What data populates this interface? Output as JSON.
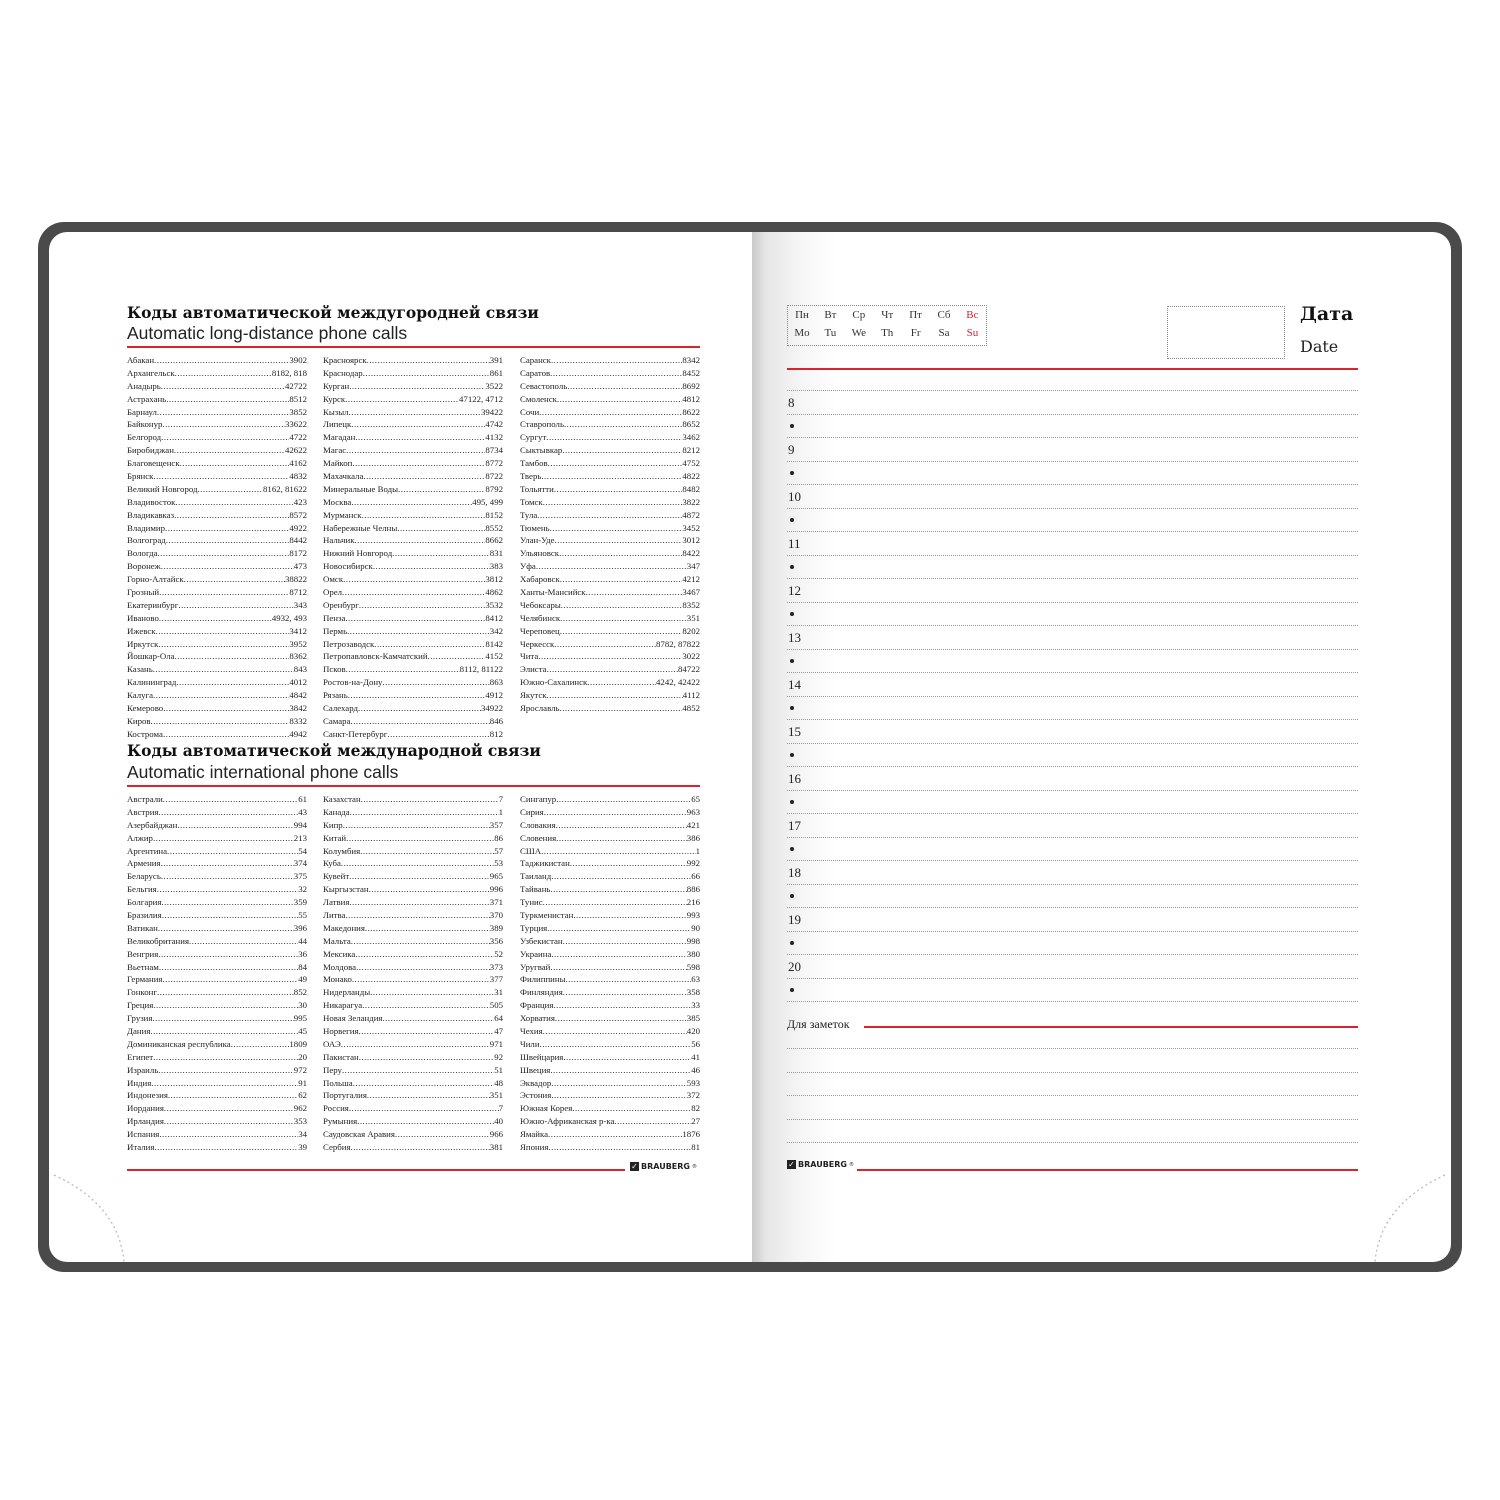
{
  "left_page": {
    "domestic": {
      "title": "Коды автоматической междугородней связи",
      "subtitle": "Automatic long-distance phone calls",
      "columns": [
        [
          [
            "Абакан",
            "3902"
          ],
          [
            "Архангельск",
            "8182, 818"
          ],
          [
            "Анадырь",
            "42722"
          ],
          [
            "Астрахань",
            "8512"
          ],
          [
            "Барнаул",
            "3852"
          ],
          [
            "Байконур",
            "33622"
          ],
          [
            "Белгород",
            "4722"
          ],
          [
            "Биробиджан",
            "42622"
          ],
          [
            "Благовещенск",
            "4162"
          ],
          [
            "Брянск",
            "4832"
          ],
          [
            "Великий Новгород",
            "8162, 81622"
          ],
          [
            "Владивосток",
            "423"
          ],
          [
            "Владикавказ",
            "8572"
          ],
          [
            "Владимир",
            "4922"
          ],
          [
            "Волгоград",
            "8442"
          ],
          [
            "Вологда",
            "8172"
          ],
          [
            "Воронеж",
            "473"
          ],
          [
            "Горно-Алтайск",
            "38822"
          ],
          [
            "Грозный",
            "8712"
          ],
          [
            "Екатеринбург",
            "343"
          ],
          [
            "Иваново",
            "4932, 493"
          ],
          [
            "Ижевск",
            "3412"
          ],
          [
            "Иркутск",
            "3952"
          ],
          [
            "Йошкар-Ола",
            "8362"
          ],
          [
            "Казань",
            "843"
          ],
          [
            "Калининград",
            "4012"
          ],
          [
            "Калуга",
            "4842"
          ],
          [
            "Кемерово",
            "3842"
          ],
          [
            "Киров",
            "8332"
          ],
          [
            "Кострома",
            "4942"
          ]
        ],
        [
          [
            "Красноярск",
            "391"
          ],
          [
            "Краснодар",
            "861"
          ],
          [
            "Курган",
            "3522"
          ],
          [
            "Курск",
            "47122, 4712"
          ],
          [
            "Кызыл",
            "39422"
          ],
          [
            "Липецк",
            "4742"
          ],
          [
            "Магадан",
            "4132"
          ],
          [
            "Магас",
            "8734"
          ],
          [
            "Майкоп",
            "8772"
          ],
          [
            "Махачкала",
            "8722"
          ],
          [
            "Минеральные Воды",
            "8792"
          ],
          [
            "Москва",
            "495, 499"
          ],
          [
            "Мурманск",
            "8152"
          ],
          [
            "Набережные Челны",
            "8552"
          ],
          [
            "Нальчик",
            "8662"
          ],
          [
            "Нижний Новгород",
            "831"
          ],
          [
            "Новосибирск",
            "383"
          ],
          [
            "Омск",
            "3812"
          ],
          [
            "Орел",
            "4862"
          ],
          [
            "Оренбург",
            "3532"
          ],
          [
            "Пенза",
            "8412"
          ],
          [
            "Пермь",
            "342"
          ],
          [
            "Петрозаводск",
            "8142"
          ],
          [
            "Петропавловск-Камчатский",
            "4152"
          ],
          [
            "Псков",
            "8112, 81122"
          ],
          [
            "Ростов-на-Дону",
            "863"
          ],
          [
            "Рязань",
            "4912"
          ],
          [
            "Салехард",
            "34922"
          ],
          [
            "Самара",
            "846"
          ],
          [
            "Санкт-Петербург",
            "812"
          ]
        ],
        [
          [
            "Саранск",
            "8342"
          ],
          [
            "Саратов",
            "8452"
          ],
          [
            "Севастополь",
            "8692"
          ],
          [
            "Смоленск",
            "4812"
          ],
          [
            "Сочи",
            "8622"
          ],
          [
            "Ставрополь",
            "8652"
          ],
          [
            "Сургут",
            "3462"
          ],
          [
            "Сыктывкар",
            "8212"
          ],
          [
            "Тамбов",
            "4752"
          ],
          [
            "Тверь",
            "4822"
          ],
          [
            "Тольятти",
            "8482"
          ],
          [
            "Томск",
            "3822"
          ],
          [
            "Тула",
            "4872"
          ],
          [
            "Тюмень",
            "3452"
          ],
          [
            "Улан-Уде",
            "3012"
          ],
          [
            "Ульяновск",
            "8422"
          ],
          [
            "Уфа",
            "347"
          ],
          [
            "Хабаровск",
            "4212"
          ],
          [
            "Ханты-Мансийск",
            "3467"
          ],
          [
            "Чебоксары",
            "8352"
          ],
          [
            "Челябинск",
            "351"
          ],
          [
            "Череповец",
            "8202"
          ],
          [
            "Черкесск",
            "8782, 87822"
          ],
          [
            "Чита",
            "3022"
          ],
          [
            "Элиста",
            "84722"
          ],
          [
            "Южно-Сахалинск",
            "4242, 42422"
          ],
          [
            "Якутск",
            "4112"
          ],
          [
            "Ярославль",
            "4852"
          ]
        ]
      ]
    },
    "international": {
      "title": "Коды автоматической международной связи",
      "subtitle": "Automatic international phone calls",
      "columns": [
        [
          [
            "Австрали",
            "61"
          ],
          [
            "Австрия",
            "43"
          ],
          [
            "Азербайджан",
            "994"
          ],
          [
            "Алжир",
            "213"
          ],
          [
            "Аргентина",
            "54"
          ],
          [
            "Армения",
            "374"
          ],
          [
            "Беларусь",
            "375"
          ],
          [
            "Бельгия",
            "32"
          ],
          [
            "Болгария",
            "359"
          ],
          [
            "Бразилия",
            "55"
          ],
          [
            "Ватикан",
            "396"
          ],
          [
            "Великобритания",
            "44"
          ],
          [
            "Венгрия",
            "36"
          ],
          [
            "Вьетнам",
            "84"
          ],
          [
            "Германия",
            "49"
          ],
          [
            "Гонконг",
            "852"
          ],
          [
            "Греция",
            "30"
          ],
          [
            "Грузия",
            "995"
          ],
          [
            "Дания",
            "45"
          ],
          [
            "Доминиканская республика",
            "1809"
          ],
          [
            "Египет",
            "20"
          ],
          [
            "Израиль",
            "972"
          ],
          [
            "Индия",
            "91"
          ],
          [
            "Индонезия",
            "62"
          ],
          [
            "Иордания",
            "962"
          ],
          [
            "Ирландия",
            "353"
          ],
          [
            "Испания",
            "34"
          ],
          [
            "Италия",
            "39"
          ]
        ],
        [
          [
            "Казахстан",
            "7"
          ],
          [
            "Канада",
            "1"
          ],
          [
            "Кипр",
            "357"
          ],
          [
            "Китай",
            "86"
          ],
          [
            "Колумбия",
            "57"
          ],
          [
            "Куба",
            "53"
          ],
          [
            "Кувейт",
            "965"
          ],
          [
            "Кыргызстан",
            "996"
          ],
          [
            "Латвия",
            "371"
          ],
          [
            "Литва",
            "370"
          ],
          [
            "Македония",
            "389"
          ],
          [
            "Мальта",
            "356"
          ],
          [
            "Мексика",
            "52"
          ],
          [
            "Молдова",
            "373"
          ],
          [
            "Монако",
            "377"
          ],
          [
            "Нидерланды",
            "31"
          ],
          [
            "Никарагуа",
            "505"
          ],
          [
            "Новая Зеландия",
            "64"
          ],
          [
            "Норвегия",
            "47"
          ],
          [
            "ОАЭ",
            "971"
          ],
          [
            "Пакистан",
            "92"
          ],
          [
            "Перу",
            "51"
          ],
          [
            "Польша",
            "48"
          ],
          [
            "Португалия",
            "351"
          ],
          [
            "Россия",
            "7"
          ],
          [
            "Румыния",
            "40"
          ],
          [
            "Саудовская Аравия",
            "966"
          ],
          [
            "Сербия",
            "381"
          ]
        ],
        [
          [
            "Сингапур",
            "65"
          ],
          [
            "Сирия",
            "963"
          ],
          [
            "Словакия",
            "421"
          ],
          [
            "Словения",
            "386"
          ],
          [
            "США",
            "1"
          ],
          [
            "Таджикистан",
            "992"
          ],
          [
            "Таиланд",
            "66"
          ],
          [
            "Тайвань",
            "886"
          ],
          [
            "Тунис",
            "216"
          ],
          [
            "Туркменистан",
            "993"
          ],
          [
            "Турция",
            "90"
          ],
          [
            "Узбекистан",
            "998"
          ],
          [
            "Украина",
            "380"
          ],
          [
            "Уругвай",
            "598"
          ],
          [
            "Филиппины",
            "63"
          ],
          [
            "Финляндия",
            "358"
          ],
          [
            "Франция",
            "33"
          ],
          [
            "Хорватия",
            "385"
          ],
          [
            "Чехия",
            "420"
          ],
          [
            "Чили",
            "56"
          ],
          [
            "Швейцария",
            "41"
          ],
          [
            "Швеция",
            "46"
          ],
          [
            "Эквадор",
            "593"
          ],
          [
            "Эстония",
            "372"
          ],
          [
            "Южная Корея",
            "82"
          ],
          [
            "Южно-Африканская р-ка",
            "27"
          ],
          [
            "Ямайка",
            "1876"
          ],
          [
            "Япония",
            "81"
          ]
        ]
      ]
    },
    "brand": "BRAUBERG"
  },
  "right_page": {
    "weekdays_ru": [
      "Пн",
      "Вт",
      "Ср",
      "Чт",
      "Пт",
      "Сб",
      "Вс"
    ],
    "weekdays_en": [
      "Mo",
      "Tu",
      "We",
      "Th",
      "Fr",
      "Sa",
      "Su"
    ],
    "date_label_ru": "Дата",
    "date_label_en": "Date",
    "hours": [
      "8",
      "9",
      "10",
      "11",
      "12",
      "13",
      "14",
      "15",
      "16",
      "17",
      "18",
      "19",
      "20"
    ],
    "notes_label": "Для заметок",
    "brand": "BRAUBERG"
  },
  "colors": {
    "accent_red": "#d9232d",
    "cover": "#4a4a4a"
  }
}
